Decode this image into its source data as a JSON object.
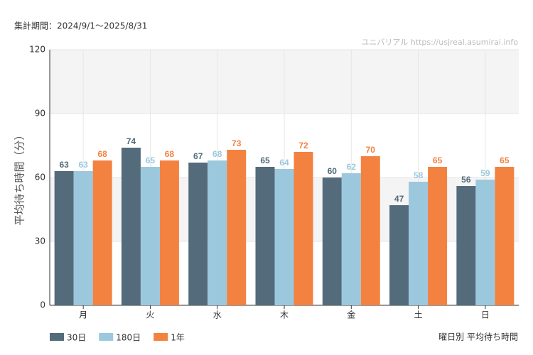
{
  "chart_data": {
    "type": "bar",
    "subtitle": "集計期間：2024/9/1～2025/8/31",
    "annotation": "ユニバリアル  https://usjreal.asumirai.info",
    "title": "曜日別 平均待ち時間",
    "y_label": "平均待ち時間（分）",
    "categories": [
      "月",
      "火",
      "水",
      "木",
      "金",
      "土",
      "日"
    ],
    "series": [
      {
        "name": "30日",
        "color": "#536b7a",
        "values": [
          63,
          74,
          67,
          65,
          60,
          47,
          56
        ]
      },
      {
        "name": "180日",
        "color": "#9cc8de",
        "values": [
          63,
          65,
          68,
          64,
          62,
          58,
          59
        ]
      },
      {
        "name": "1年",
        "color": "#f38241",
        "values": [
          68,
          68,
          73,
          72,
          70,
          65,
          65
        ]
      }
    ],
    "ylim": [
      0,
      120
    ],
    "yticks": [
      0,
      30,
      60,
      90,
      120
    ],
    "grid": true,
    "legend": "bottom-left"
  }
}
